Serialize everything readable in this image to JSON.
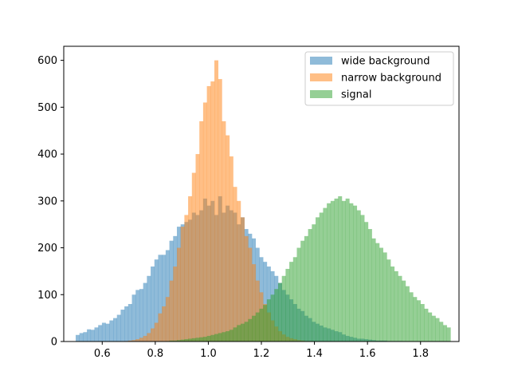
{
  "chart_data": {
    "type": "bar",
    "subtype": "histogram-overlay",
    "title": "",
    "xlabel": "",
    "ylabel": "",
    "xlim": [
      0.455,
      1.945
    ],
    "ylim": [
      0,
      630
    ],
    "x_ticks": [
      0.6,
      0.8,
      1.0,
      1.2,
      1.4,
      1.6,
      1.8
    ],
    "x_tick_labels": [
      "0.6",
      "0.8",
      "1.0",
      "1.2",
      "1.4",
      "1.6",
      "1.8"
    ],
    "y_ticks": [
      0,
      100,
      200,
      300,
      400,
      500,
      600
    ],
    "y_tick_labels": [
      "0",
      "100",
      "200",
      "300",
      "400",
      "500",
      "600"
    ],
    "grid": false,
    "legend_position": "upper right",
    "alpha": 0.5,
    "series": [
      {
        "name": "wide background",
        "color": "#1f77b4",
        "bin_start": 0.5,
        "bin_width": 0.01413,
        "counts": [
          14,
          18,
          20,
          26,
          25,
          30,
          35,
          40,
          38,
          45,
          50,
          57,
          68,
          75,
          80,
          100,
          110,
          112,
          125,
          140,
          160,
          175,
          185,
          185,
          195,
          215,
          225,
          245,
          250,
          255,
          260,
          275,
          270,
          280,
          305,
          290,
          300,
          270,
          310,
          275,
          290,
          280,
          275,
          250,
          265,
          240,
          230,
          220,
          200,
          180,
          170,
          160,
          150,
          140,
          125,
          110,
          100,
          90,
          80,
          70,
          65,
          55,
          50,
          42,
          38,
          34,
          30,
          28,
          25,
          22,
          20,
          15,
          12,
          10,
          8,
          6,
          6,
          5,
          4,
          3,
          2,
          2,
          2,
          1,
          1,
          1,
          1,
          0,
          0,
          0,
          0,
          0,
          0,
          0,
          0,
          0,
          0,
          0,
          0,
          0
        ]
      },
      {
        "name": "narrow background",
        "color": "#ff7f0e",
        "bin_start": 0.5,
        "bin_width": 0.01413,
        "counts": [
          0,
          0,
          0,
          0,
          0,
          0,
          0,
          0,
          0,
          0,
          0,
          0,
          0,
          1,
          2,
          3,
          5,
          8,
          12,
          18,
          28,
          40,
          60,
          75,
          95,
          130,
          160,
          200,
          245,
          270,
          310,
          360,
          400,
          470,
          510,
          545,
          555,
          600,
          560,
          470,
          440,
          395,
          330,
          300,
          265,
          225,
          200,
          165,
          130,
          105,
          80,
          62,
          45,
          32,
          22,
          15,
          10,
          7,
          5,
          3,
          2,
          1,
          1,
          0,
          0,
          0,
          0,
          0,
          0,
          0,
          0,
          0,
          0,
          0,
          0,
          0,
          0,
          0,
          0,
          0,
          0,
          0,
          0,
          0,
          0,
          0,
          0,
          0,
          0,
          0,
          0,
          0,
          0,
          0,
          0,
          0,
          0,
          0,
          0,
          0
        ]
      },
      {
        "name": "signal",
        "color": "#2ca02c",
        "bin_start": 0.5,
        "bin_width": 0.01413,
        "counts": [
          0,
          0,
          0,
          0,
          0,
          0,
          0,
          0,
          0,
          0,
          0,
          0,
          0,
          0,
          0,
          0,
          0,
          0,
          0,
          0,
          0,
          0,
          0,
          0,
          1,
          2,
          2,
          3,
          4,
          5,
          6,
          7,
          8,
          9,
          10,
          12,
          14,
          16,
          18,
          20,
          22,
          25,
          30,
          35,
          38,
          42,
          48,
          55,
          62,
          70,
          78,
          90,
          100,
          112,
          125,
          140,
          155,
          170,
          180,
          200,
          215,
          225,
          240,
          250,
          265,
          275,
          285,
          295,
          300,
          305,
          310,
          300,
          305,
          295,
          290,
          280,
          270,
          255,
          240,
          220,
          210,
          200,
          190,
          175,
          160,
          150,
          140,
          130,
          118,
          105,
          95,
          88,
          80,
          70,
          62,
          55,
          50,
          42,
          35,
          30
        ]
      }
    ]
  }
}
